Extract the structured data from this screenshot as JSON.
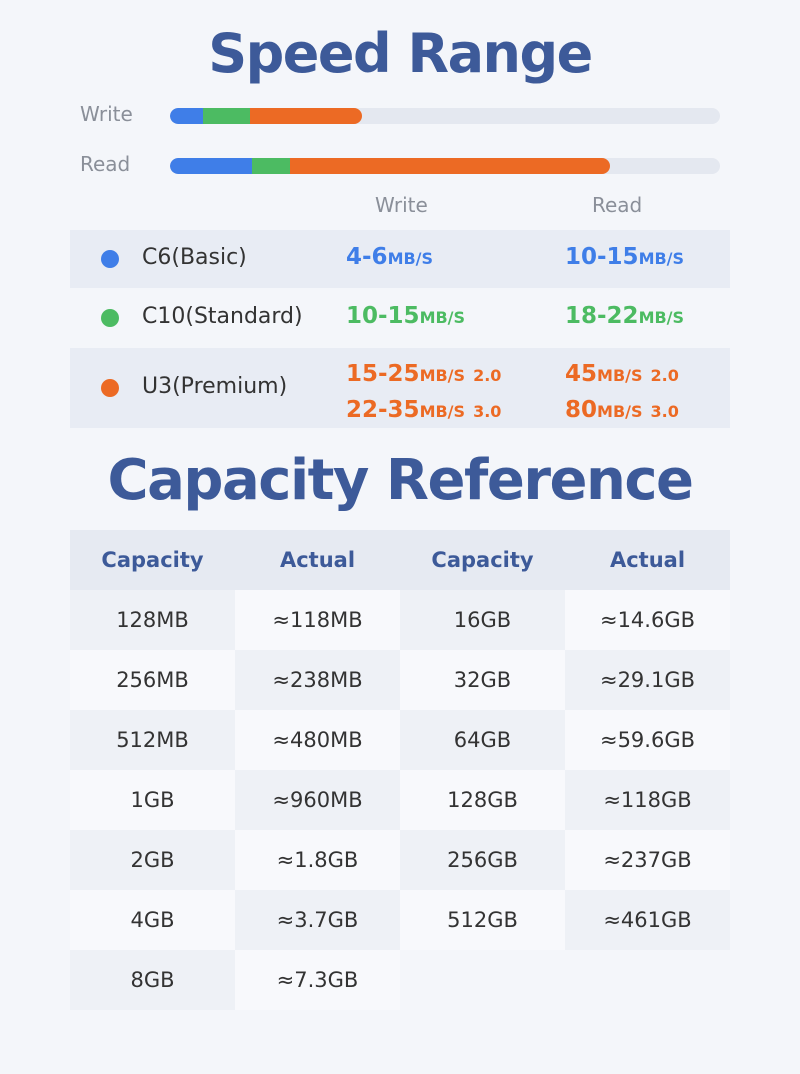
{
  "speed": {
    "title": "Speed Range",
    "bar_labels": [
      "Write",
      "Read"
    ],
    "columns": [
      "Write",
      "Read"
    ],
    "rows": [
      {
        "name": "C6(Basic)",
        "color": "#3f7ee8",
        "write": [
          {
            "range": "4-6",
            "unit": "MB/S"
          }
        ],
        "read": [
          {
            "range": "10-15",
            "unit": "MB/S"
          }
        ]
      },
      {
        "name": "C10(Standard)",
        "color": "#4cbb62",
        "write": [
          {
            "range": "10-15",
            "unit": "MB/S"
          }
        ],
        "read": [
          {
            "range": "18-22",
            "unit": "MB/S"
          }
        ]
      },
      {
        "name": "U3(Premium)",
        "color": "#ec6a24",
        "write": [
          {
            "range": "15-25",
            "unit": "MB/S",
            "version": "2.0"
          },
          {
            "range": "22-35",
            "unit": "MB/S",
            "version": "3.0"
          }
        ],
        "read": [
          {
            "range": "45",
            "unit": "MB/S",
            "version": "2.0"
          },
          {
            "range": "80",
            "unit": "MB/S",
            "version": "3.0"
          }
        ]
      }
    ]
  },
  "capacity": {
    "title": "Capacity Reference",
    "header": [
      "Capacity",
      "Actual",
      "Capacity",
      "Actual"
    ],
    "rows": [
      [
        "128MB",
        "≈118MB",
        "16GB",
        "≈14.6GB"
      ],
      [
        "256MB",
        "≈238MB",
        "32GB",
        "≈29.1GB"
      ],
      [
        "512MB",
        "≈480MB",
        "64GB",
        "≈59.6GB"
      ],
      [
        "1GB",
        "≈960MB",
        "128GB",
        "≈118GB"
      ],
      [
        "2GB",
        "≈1.8GB",
        "256GB",
        "≈237GB"
      ],
      [
        "4GB",
        "≈3.7GB",
        "512GB",
        "≈461GB"
      ],
      [
        "8GB",
        "≈7.3GB"
      ]
    ]
  }
}
